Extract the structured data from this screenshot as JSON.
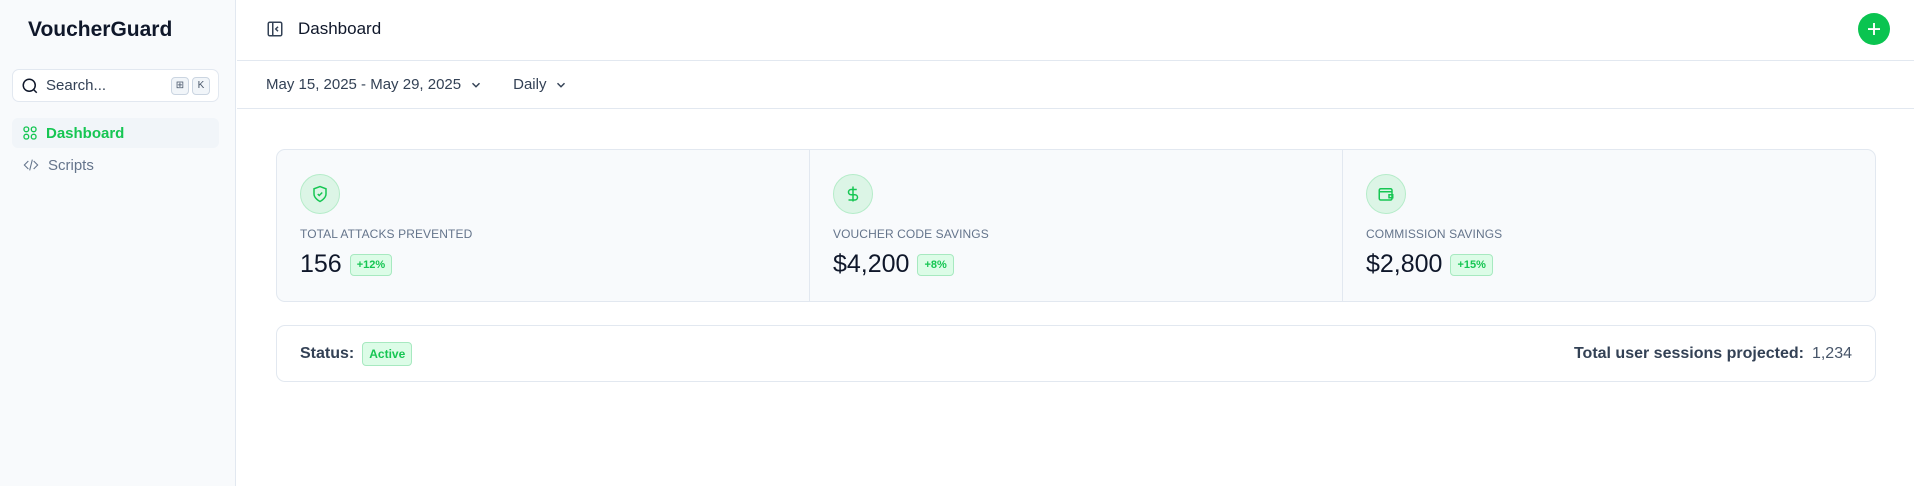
{
  "app": {
    "brand": "VoucherGuard"
  },
  "sidebar": {
    "search": {
      "placeholder": "Search...",
      "shortcut": [
        "⊞",
        "K"
      ]
    },
    "items": [
      {
        "label": "Dashboard",
        "icon": "grid-icon",
        "active": true
      },
      {
        "label": "Scripts",
        "icon": "code-icon",
        "active": false
      }
    ]
  },
  "header": {
    "title": "Dashboard",
    "add_button": "plus-icon"
  },
  "filters": {
    "date_range": "May 15, 2025 - May 29, 2025",
    "interval": "Daily"
  },
  "stats": [
    {
      "label": "TOTAL ATTACKS PREVENTED",
      "value": "156",
      "change": "+12%",
      "icon": "shield-check-icon"
    },
    {
      "label": "VOUCHER CODE SAVINGS",
      "value": "$4,200",
      "change": "+8%",
      "icon": "dollar-icon"
    },
    {
      "label": "COMMISSION SAVINGS",
      "value": "$2,800",
      "change": "+15%",
      "icon": "wallet-icon"
    }
  ],
  "status": {
    "label": "Status:",
    "value": "Active",
    "sessions_label": "Total user sessions projected:",
    "sessions_value": "1,234"
  },
  "colors": {
    "accent": "#16c653"
  }
}
